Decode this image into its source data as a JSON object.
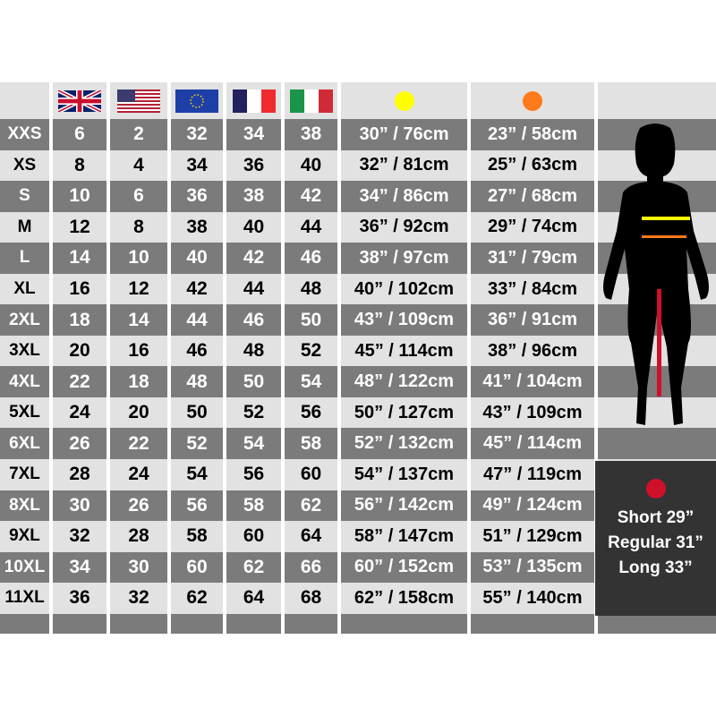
{
  "header": {
    "flags": [
      "uk-flag",
      "us-flag",
      "eu-flag",
      "france-flag",
      "italy-flag"
    ],
    "measure_colors": {
      "bust": "#ffff00",
      "waist": "#ff7a1a",
      "inseam": "#d0102a"
    }
  },
  "rows": [
    {
      "size": "XXS",
      "uk": "6",
      "us": "2",
      "eu": "32",
      "fr": "34",
      "it": "38",
      "bust": "30” / 76cm",
      "waist": "23” / 58cm"
    },
    {
      "size": "XS",
      "uk": "8",
      "us": "4",
      "eu": "34",
      "fr": "36",
      "it": "40",
      "bust": "32” / 81cm",
      "waist": "25” / 63cm"
    },
    {
      "size": "S",
      "uk": "10",
      "us": "6",
      "eu": "36",
      "fr": "38",
      "it": "42",
      "bust": "34” / 86cm",
      "waist": "27” / 68cm"
    },
    {
      "size": "M",
      "uk": "12",
      "us": "8",
      "eu": "38",
      "fr": "40",
      "it": "44",
      "bust": "36” / 92cm",
      "waist": "29” / 74cm"
    },
    {
      "size": "L",
      "uk": "14",
      "us": "10",
      "eu": "40",
      "fr": "42",
      "it": "46",
      "bust": "38” / 97cm",
      "waist": "31” / 79cm"
    },
    {
      "size": "XL",
      "uk": "16",
      "us": "12",
      "eu": "42",
      "fr": "44",
      "it": "48",
      "bust": "40” / 102cm",
      "waist": "33” / 84cm"
    },
    {
      "size": "2XL",
      "uk": "18",
      "us": "14",
      "eu": "44",
      "fr": "46",
      "it": "50",
      "bust": "43” / 109cm",
      "waist": "36” / 91cm"
    },
    {
      "size": "3XL",
      "uk": "20",
      "us": "16",
      "eu": "46",
      "fr": "48",
      "it": "52",
      "bust": "45” / 114cm",
      "waist": "38” / 96cm"
    },
    {
      "size": "4XL",
      "uk": "22",
      "us": "18",
      "eu": "48",
      "fr": "50",
      "it": "54",
      "bust": "48” / 122cm",
      "waist": "41” / 104cm"
    },
    {
      "size": "5XL",
      "uk": "24",
      "us": "20",
      "eu": "50",
      "fr": "52",
      "it": "56",
      "bust": "50” / 127cm",
      "waist": "43” / 109cm"
    },
    {
      "size": "6XL",
      "uk": "26",
      "us": "22",
      "eu": "52",
      "fr": "54",
      "it": "58",
      "bust": "52” / 132cm",
      "waist": "45” / 114cm"
    },
    {
      "size": "7XL",
      "uk": "28",
      "us": "24",
      "eu": "54",
      "fr": "56",
      "it": "60",
      "bust": "54” / 137cm",
      "waist": "47” / 119cm"
    },
    {
      "size": "8XL",
      "uk": "30",
      "us": "26",
      "eu": "56",
      "fr": "58",
      "it": "62",
      "bust": "56” / 142cm",
      "waist": "49” / 124cm"
    },
    {
      "size": "9XL",
      "uk": "32",
      "us": "28",
      "eu": "58",
      "fr": "60",
      "it": "64",
      "bust": "58” / 147cm",
      "waist": "51” / 129cm"
    },
    {
      "size": "10XL",
      "uk": "34",
      "us": "30",
      "eu": "60",
      "fr": "62",
      "it": "66",
      "bust": "60” / 152cm",
      "waist": "53” / 135cm"
    },
    {
      "size": "11XL",
      "uk": "36",
      "us": "32",
      "eu": "62",
      "fr": "64",
      "it": "68",
      "bust": "62” / 158cm",
      "waist": "55” / 140cm"
    }
  ],
  "inseam": {
    "lines": [
      "Short 29”",
      "Regular 31”",
      "Long 33”"
    ]
  }
}
